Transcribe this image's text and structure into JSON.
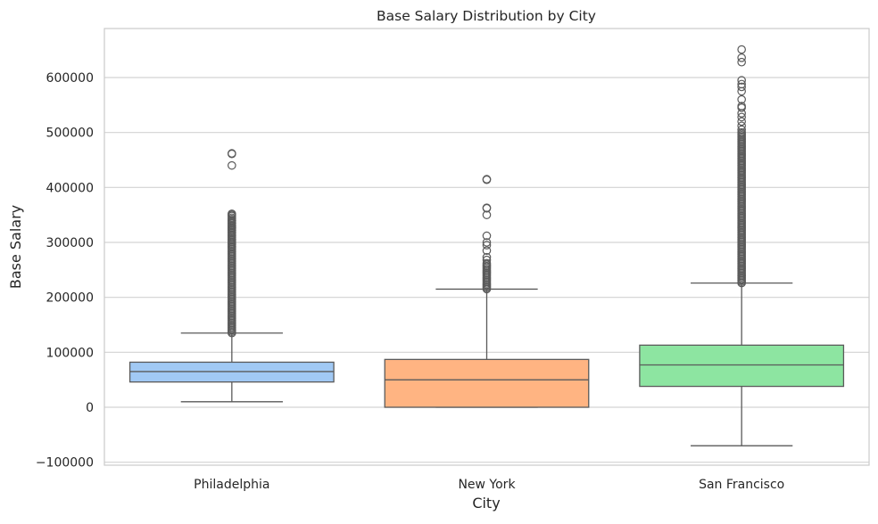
{
  "chart_data": {
    "type": "box",
    "title": "Base Salary Distribution by City",
    "xlabel": "City",
    "ylabel": "Base Salary",
    "ylim": [
      -105000,
      690000
    ],
    "yticks": [
      -100000,
      0,
      100000,
      200000,
      300000,
      400000,
      500000,
      600000
    ],
    "ytick_labels": [
      "−100000",
      "0",
      "100000",
      "200000",
      "300000",
      "400000",
      "500000",
      "600000"
    ],
    "grid": true,
    "categories": [
      "Philadelphia",
      "New York",
      "San Francisco"
    ],
    "colors": {
      "Philadelphia": "#a1c9f4",
      "New York": "#ffb482",
      "San Francisco": "#8de5a1",
      "lines": "#5a5a5a",
      "grid": "#d3d3d3",
      "frame": "#cccccc"
    },
    "series": [
      {
        "category": "Philadelphia",
        "whisker_low": 10000,
        "q1": 46000,
        "median": 65000,
        "q3": 82000,
        "whisker_high": 135000,
        "outlier_dense_range": [
          135000,
          345000
        ],
        "outliers": [
          350000,
          352000,
          348000,
          340000,
          335000,
          330000,
          326000,
          322000,
          318000,
          312000,
          305000,
          298000,
          292000,
          440000,
          462000,
          461000
        ]
      },
      {
        "category": "New York",
        "whisker_low": 0,
        "q1": 0,
        "median": 50000,
        "q3": 87000,
        "whisker_high": 215000,
        "outlier_dense_range": [
          215000,
          262000
        ],
        "outliers": [
          268000,
          273000,
          285000,
          295000,
          300000,
          312000,
          350000,
          362000,
          363000,
          414000,
          415000
        ]
      },
      {
        "category": "San Francisco",
        "whisker_low": -70000,
        "q1": 38000,
        "median": 77000,
        "q3": 113000,
        "whisker_high": 226000,
        "outlier_dense_range": [
          226000,
          500000
        ],
        "outliers": [
          505000,
          512000,
          520000,
          528000,
          535000,
          545000,
          548000,
          560000,
          575000,
          583000,
          588000,
          595000,
          628000,
          636000,
          651000
        ]
      }
    ]
  }
}
